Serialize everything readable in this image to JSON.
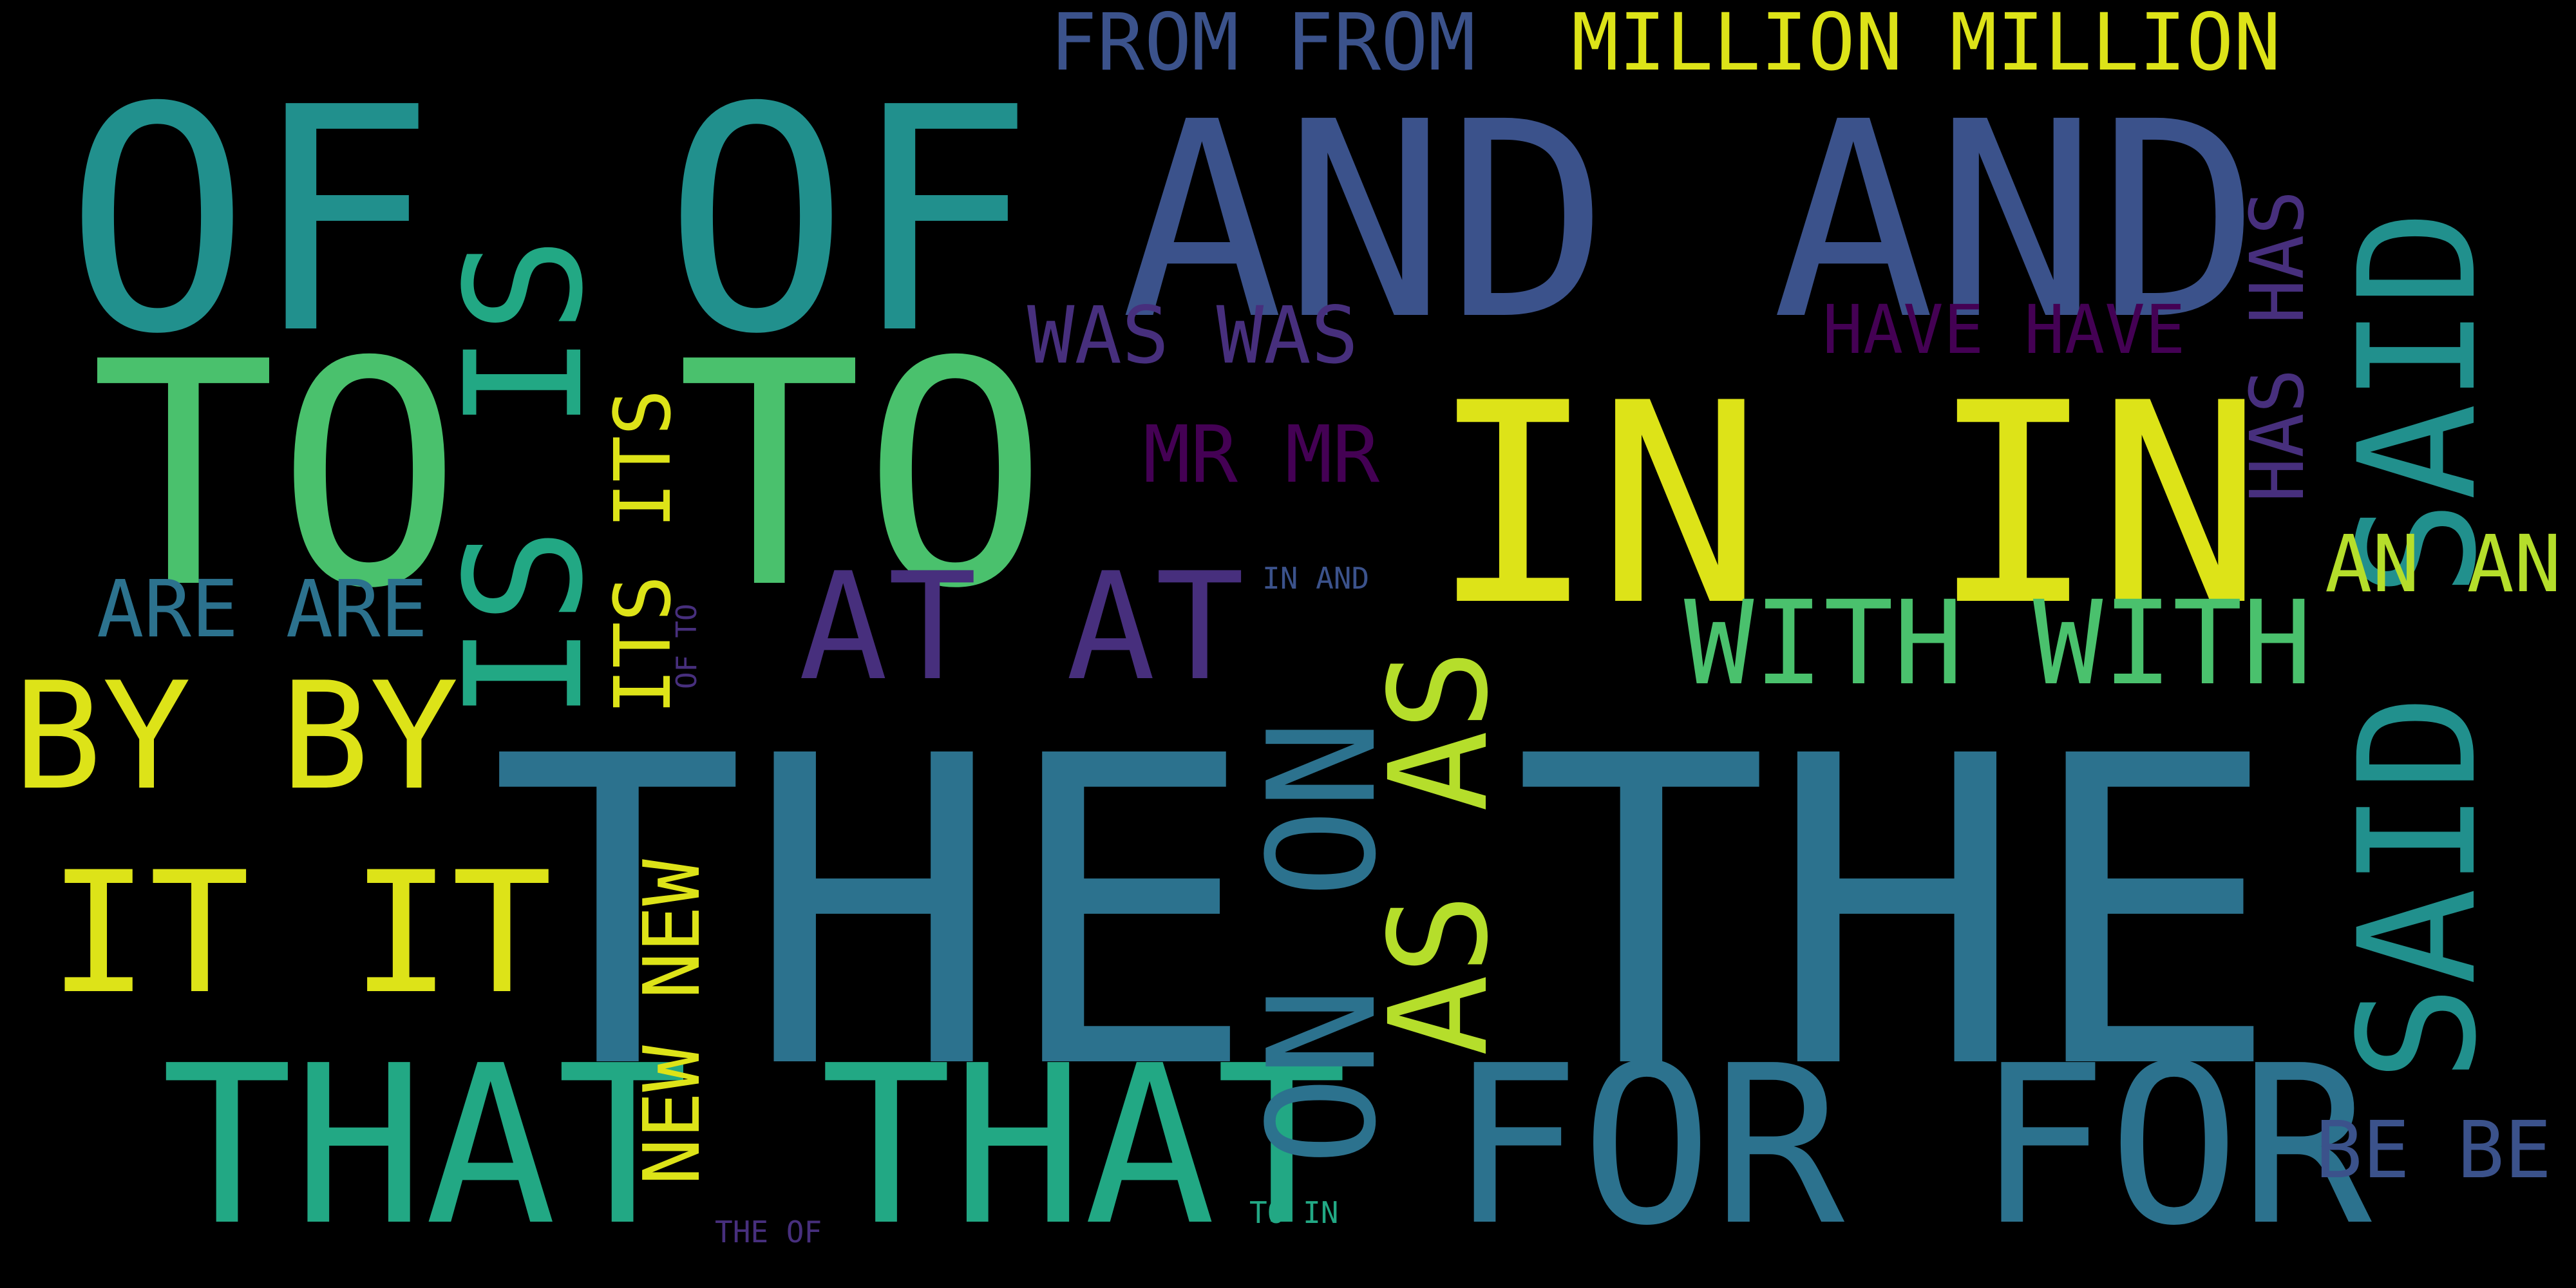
{
  "words": {
    "the_the": "THE THE",
    "in_in": "IN IN",
    "and_and": "AND AND",
    "of_1": "OF",
    "of_2": "OF",
    "to_1": "TO",
    "to_2": "TO",
    "is_is": "IS IS",
    "said_said": "SAID SAID",
    "that_that": "THAT THAT",
    "for_for": "FOR FOR",
    "on_on": "ON ON",
    "as_as": "AS AS",
    "it_it": "IT IT",
    "by_by": "BY BY",
    "at_at": "AT AT",
    "with_with": "WITH WITH",
    "million_million": "MILLION MILLION",
    "from_from": "FROM FROM",
    "was_was": "WAS WAS",
    "have_have": "HAVE HAVE",
    "has_has": "HAS HAS",
    "mr_mr": "MR MR",
    "are_are": "ARE ARE",
    "its_its": "ITS ITS",
    "an_an": "AN AN",
    "new_new": "NEW NEW",
    "be_be": "BE BE",
    "in_and": "IN AND",
    "of_to": "OF TO",
    "the_of": "THE OF",
    "to_in": "TO IN"
  },
  "colors": {
    "yellow": "#dde318",
    "lime": "#b5de2b",
    "green": "#4ac16d",
    "teal_green": "#22a884",
    "teal": "#21908d",
    "steel": "#2c728e",
    "blue": "#3b528b",
    "indigo": "#472f7d",
    "purple": "#440154",
    "background": "#000000"
  }
}
